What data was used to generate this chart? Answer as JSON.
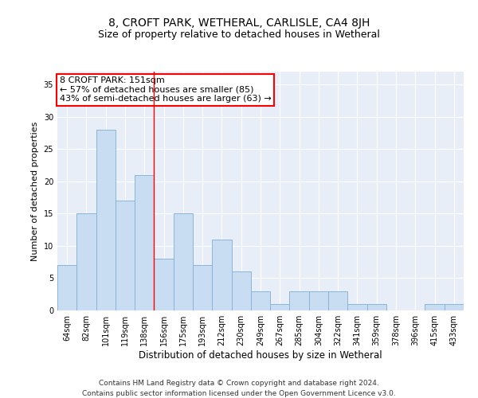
{
  "title": "8, CROFT PARK, WETHERAL, CARLISLE, CA4 8JH",
  "subtitle": "Size of property relative to detached houses in Wetheral",
  "xlabel": "Distribution of detached houses by size in Wetheral",
  "ylabel": "Number of detached properties",
  "categories": [
    "64sqm",
    "82sqm",
    "101sqm",
    "119sqm",
    "138sqm",
    "156sqm",
    "175sqm",
    "193sqm",
    "212sqm",
    "230sqm",
    "249sqm",
    "267sqm",
    "285sqm",
    "304sqm",
    "322sqm",
    "341sqm",
    "359sqm",
    "378sqm",
    "396sqm",
    "415sqm",
    "433sqm"
  ],
  "values": [
    7,
    15,
    28,
    17,
    21,
    8,
    15,
    7,
    11,
    6,
    3,
    1,
    3,
    3,
    3,
    1,
    1,
    0,
    0,
    1,
    1
  ],
  "bar_color": "#c9ddf2",
  "bar_edge_color": "#8ab4d8",
  "vline_x": 4.5,
  "vline_color": "red",
  "annotation_text": "8 CROFT PARK: 151sqm\n← 57% of detached houses are smaller (85)\n43% of semi-detached houses are larger (63) →",
  "annotation_box_color": "white",
  "annotation_box_edge": "red",
  "ylim": [
    0,
    37
  ],
  "yticks": [
    0,
    5,
    10,
    15,
    20,
    25,
    30,
    35
  ],
  "background_color": "#e8eef8",
  "footer1": "Contains HM Land Registry data © Crown copyright and database right 2024.",
  "footer2": "Contains public sector information licensed under the Open Government Licence v3.0.",
  "title_fontsize": 10,
  "subtitle_fontsize": 9,
  "xlabel_fontsize": 8.5,
  "ylabel_fontsize": 8,
  "tick_fontsize": 7,
  "annotation_fontsize": 8,
  "footer_fontsize": 6.5
}
